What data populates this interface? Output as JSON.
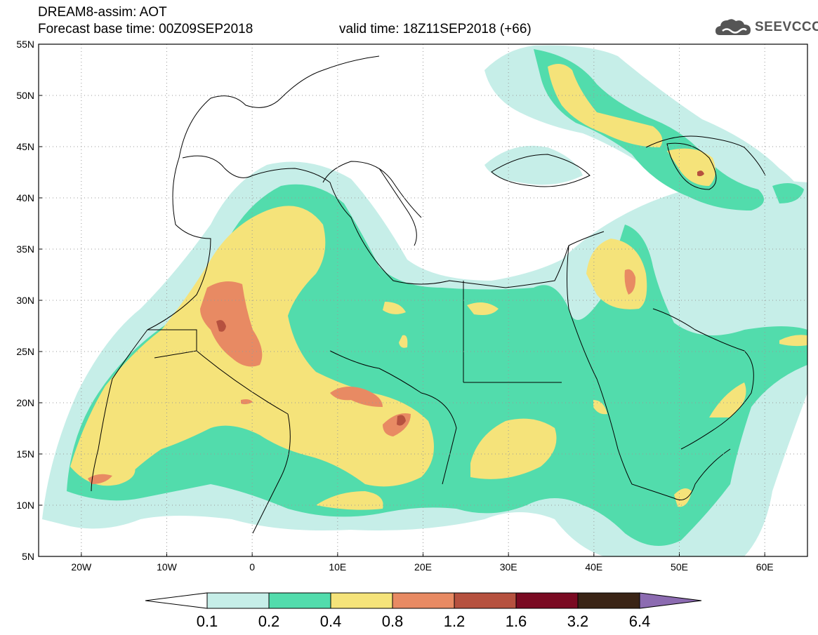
{
  "header": {
    "title_line1": "DREAM8-assim: AOT",
    "title_line2": "Forecast base time: 00Z09SEP2018",
    "valid_time": "valid time: 18Z11SEP2018 (+66)",
    "logo_text": "SEEVCCC"
  },
  "axes": {
    "lat_labels": [
      "55N",
      "50N",
      "45N",
      "40N",
      "35N",
      "30N",
      "25N",
      "20N",
      "15N",
      "10N",
      "5N"
    ],
    "lon_labels": [
      "20W",
      "10W",
      "0",
      "10E",
      "20E",
      "30E",
      "40E",
      "50E",
      "60E"
    ],
    "lon_range": [
      -25,
      65
    ],
    "lat_range": [
      5,
      55
    ]
  },
  "legend": {
    "levels": [
      "0.1",
      "0.2",
      "0.4",
      "0.8",
      "1.2",
      "1.6",
      "3.2",
      "6.4"
    ],
    "colors": [
      "#ffffff",
      "#c6eee8",
      "#52dcac",
      "#f5e37a",
      "#e88a63",
      "#b6513f",
      "#7a0a22",
      "#3a2416",
      "#8c6bb1"
    ]
  },
  "colors": {
    "c1": "#c6eee8",
    "c2": "#52dcac",
    "c3": "#f5e37a",
    "c4": "#e88a63",
    "c5": "#b6513f",
    "c6": "#7a0a22"
  }
}
